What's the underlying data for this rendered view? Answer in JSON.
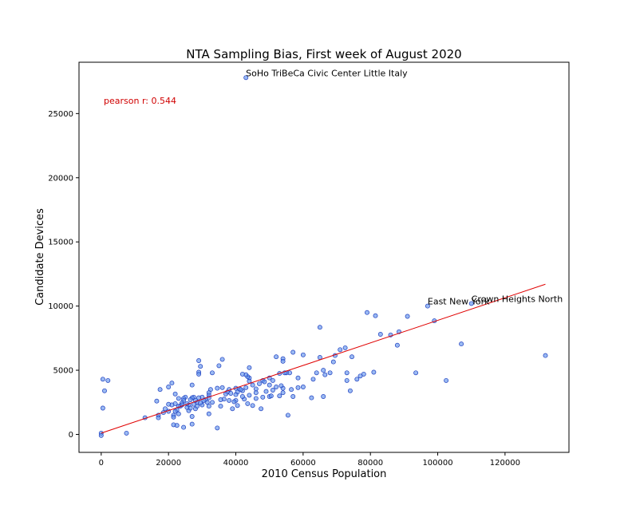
{
  "chart_data": {
    "type": "scatter",
    "title": "NTA Sampling Bias, First week of August 2020",
    "xlabel": "2010 Census Population",
    "ylabel": "Candidate Devices",
    "xlim": [
      -6600,
      139000
    ],
    "ylim": [
      -1400,
      29000
    ],
    "xticks": [
      0,
      20000,
      40000,
      60000,
      80000,
      100000,
      120000
    ],
    "yticks": [
      0,
      5000,
      10000,
      15000,
      20000,
      25000
    ],
    "grid": false,
    "point_color": "#6495ED",
    "point_edge_color": "#1f3fbf",
    "fit_line": {
      "color": "#e00000",
      "x": [
        0,
        132000
      ],
      "y": [
        100,
        11700
      ]
    },
    "stat_annotation": {
      "text": "pearson r: 0.544",
      "color": "#d00000"
    },
    "annotations": [
      {
        "text": "SoHo TriBeCa Civic Center Little Italy",
        "x": 43000,
        "y": 27800
      },
      {
        "text": "East New York",
        "x": 97000,
        "y": 10000
      },
      {
        "text": "Crown Heights North",
        "x": 110000,
        "y": 10200
      }
    ],
    "points": [
      [
        43000,
        27800
      ],
      [
        97000,
        10000
      ],
      [
        110000,
        10200
      ],
      [
        132000,
        6150
      ],
      [
        107000,
        7050
      ],
      [
        102500,
        4200
      ],
      [
        93500,
        4800
      ],
      [
        99000,
        8850
      ],
      [
        91000,
        9200
      ],
      [
        88500,
        8000
      ],
      [
        88000,
        6950
      ],
      [
        86000,
        7750
      ],
      [
        83000,
        7800
      ],
      [
        81500,
        9250
      ],
      [
        79000,
        9500
      ],
      [
        81000,
        4850
      ],
      [
        78000,
        4700
      ],
      [
        77000,
        4550
      ],
      [
        76000,
        4300
      ],
      [
        74500,
        6050
      ],
      [
        74000,
        3400
      ],
      [
        72500,
        6750
      ],
      [
        71000,
        6600
      ],
      [
        73000,
        4800
      ],
      [
        73000,
        4200
      ],
      [
        69500,
        6150
      ],
      [
        69000,
        5650
      ],
      [
        68000,
        4800
      ],
      [
        66500,
        4650
      ],
      [
        66000,
        5000
      ],
      [
        66000,
        2950
      ],
      [
        65000,
        6000
      ],
      [
        65000,
        8350
      ],
      [
        64000,
        4800
      ],
      [
        63000,
        4300
      ],
      [
        62500,
        2850
      ],
      [
        60000,
        6200
      ],
      [
        60000,
        3700
      ],
      [
        58500,
        4400
      ],
      [
        57000,
        6400
      ],
      [
        56500,
        3500
      ],
      [
        56000,
        4800
      ],
      [
        55000,
        4800
      ],
      [
        54000,
        5900
      ],
      [
        54000,
        5700
      ],
      [
        54000,
        3600
      ],
      [
        54000,
        3250
      ],
      [
        53000,
        4750
      ],
      [
        53000,
        3000
      ],
      [
        52000,
        6050
      ],
      [
        52000,
        3700
      ],
      [
        51000,
        3450
      ],
      [
        50000,
        4400
      ],
      [
        50000,
        3850
      ],
      [
        50000,
        2950
      ],
      [
        49000,
        3350
      ],
      [
        48000,
        2900
      ],
      [
        48000,
        4200
      ],
      [
        47000,
        3950
      ],
      [
        46000,
        2800
      ],
      [
        46000,
        3250
      ],
      [
        45000,
        3850
      ],
      [
        44000,
        5200
      ],
      [
        44000,
        4400
      ],
      [
        44000,
        4150
      ],
      [
        43500,
        4500
      ],
      [
        43000,
        4650
      ],
      [
        43000,
        3650
      ],
      [
        42500,
        2750
      ],
      [
        42000,
        2950
      ],
      [
        42000,
        3400
      ],
      [
        42000,
        4700
      ],
      [
        41000,
        3550
      ],
      [
        40500,
        3300
      ],
      [
        40000,
        3600
      ],
      [
        40000,
        2650
      ],
      [
        39000,
        2000
      ],
      [
        40500,
        2250
      ],
      [
        38000,
        3500
      ],
      [
        37500,
        3300
      ],
      [
        37000,
        3150
      ],
      [
        36500,
        2750
      ],
      [
        35500,
        2700
      ],
      [
        36000,
        3650
      ],
      [
        35000,
        5350
      ],
      [
        36000,
        5850
      ],
      [
        34500,
        3600
      ],
      [
        33000,
        4800
      ],
      [
        32500,
        3500
      ],
      [
        32000,
        3250
      ],
      [
        32000,
        3050
      ],
      [
        32000,
        2850
      ],
      [
        32000,
        2200
      ],
      [
        31000,
        2700
      ],
      [
        30500,
        2650
      ],
      [
        30000,
        2900
      ],
      [
        29000,
        4850
      ],
      [
        29000,
        4700
      ],
      [
        29000,
        5750
      ],
      [
        29500,
        5300
      ],
      [
        29000,
        2850
      ],
      [
        28500,
        2500
      ],
      [
        28000,
        2650
      ],
      [
        28000,
        2000
      ],
      [
        27500,
        2900
      ],
      [
        27000,
        3850
      ],
      [
        27000,
        2850
      ],
      [
        26500,
        2700
      ],
      [
        26000,
        2300
      ],
      [
        26000,
        1850
      ],
      [
        25500,
        2100
      ],
      [
        25000,
        2900
      ],
      [
        24500,
        2800
      ],
      [
        24500,
        2650
      ],
      [
        24000,
        2450
      ],
      [
        23500,
        2200
      ],
      [
        23000,
        2800
      ],
      [
        23000,
        1600
      ],
      [
        22500,
        1900
      ],
      [
        22000,
        3150
      ],
      [
        22000,
        2400
      ],
      [
        22000,
        1800
      ],
      [
        21500,
        1500
      ],
      [
        21000,
        2300
      ],
      [
        20000,
        2350
      ],
      [
        20000,
        1800
      ],
      [
        19000,
        2000
      ],
      [
        18500,
        1700
      ],
      [
        17000,
        1500
      ],
      [
        21000,
        4000
      ],
      [
        20000,
        3700
      ],
      [
        17500,
        3500
      ],
      [
        16500,
        2600
      ],
      [
        17000,
        1300
      ],
      [
        13000,
        1300
      ],
      [
        7500,
        100
      ],
      [
        0,
        100
      ],
      [
        0,
        -80
      ],
      [
        2000,
        4200
      ],
      [
        500,
        4300
      ],
      [
        1000,
        3400
      ],
      [
        500,
        2050
      ],
      [
        21500,
        1350
      ],
      [
        21500,
        750
      ],
      [
        22500,
        700
      ],
      [
        24500,
        550
      ],
      [
        27000,
        800
      ],
      [
        27000,
        1400
      ],
      [
        32000,
        1600
      ],
      [
        34500,
        500
      ],
      [
        35500,
        2200
      ],
      [
        39500,
        2550
      ],
      [
        41500,
        3500
      ],
      [
        43500,
        2400
      ],
      [
        45000,
        2250
      ],
      [
        47500,
        2000
      ],
      [
        50500,
        3000
      ],
      [
        53500,
        3800
      ],
      [
        55500,
        1500
      ],
      [
        57000,
        2950
      ],
      [
        58500,
        3650
      ],
      [
        30000,
        2300
      ],
      [
        28500,
        2200
      ],
      [
        26500,
        2050
      ],
      [
        25500,
        2400
      ],
      [
        24000,
        2300
      ],
      [
        23000,
        2200
      ],
      [
        31500,
        2500
      ],
      [
        29500,
        2450
      ],
      [
        27500,
        2350
      ],
      [
        33000,
        2500
      ],
      [
        38000,
        2650
      ],
      [
        38500,
        3200
      ],
      [
        40000,
        3100
      ],
      [
        44000,
        3050
      ],
      [
        46000,
        3550
      ],
      [
        48500,
        4100
      ],
      [
        51000,
        4200
      ],
      [
        54500,
        4800
      ]
    ]
  }
}
